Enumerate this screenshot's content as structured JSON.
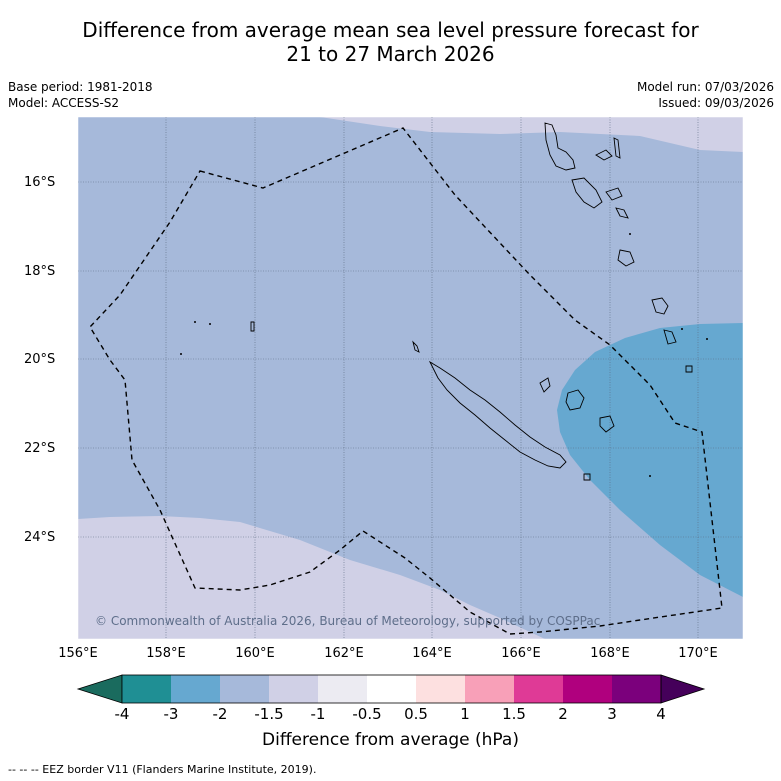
{
  "title_line1": "Difference from average mean sea level pressure forecast for",
  "title_line2": "21 to 27 March 2026",
  "base_period": "Base period: 1981-2018",
  "model": "Model: ACCESS-S2",
  "model_run": "Model run: 07/03/2026",
  "issued": "Issued: 09/03/2026",
  "lat_labels": [
    "16°S",
    "18°S",
    "20°S",
    "22°S",
    "24°S"
  ],
  "lon_labels": [
    "156°E",
    "158°E",
    "160°E",
    "162°E",
    "164°E",
    "166°E",
    "168°E",
    "170°E"
  ],
  "copyright": "© Commonwealth of Australia 2026, Bureau of Meteorology, supported by COSPPac",
  "colorbar": {
    "ticks": [
      "-4",
      "-3",
      "-2",
      "-1.5",
      "-1",
      "-0.5",
      "0.5",
      "1",
      "1.5",
      "2",
      "3",
      "4"
    ],
    "colors": [
      "#1a6b5e",
      "#1f8f94",
      "#66a8d0",
      "#a6b9da",
      "#d0d0e6",
      "#ecebf2",
      "#ffffff",
      "#fde0e0",
      "#f8a0b8",
      "#df3a96",
      "#b0007e",
      "#7b007c",
      "#45005a"
    ],
    "title": "Difference from average (hPa)"
  },
  "footer": "--  --  -- EEZ border V11 (Flanders Marine Institute, 2019).",
  "map_colors": {
    "minus_1_5_to_minus_2": "#a6b9da",
    "minus_1_to_minus_1_5": "#d0d0e6",
    "minus_2_to_minus_3": "#66a8d0"
  }
}
